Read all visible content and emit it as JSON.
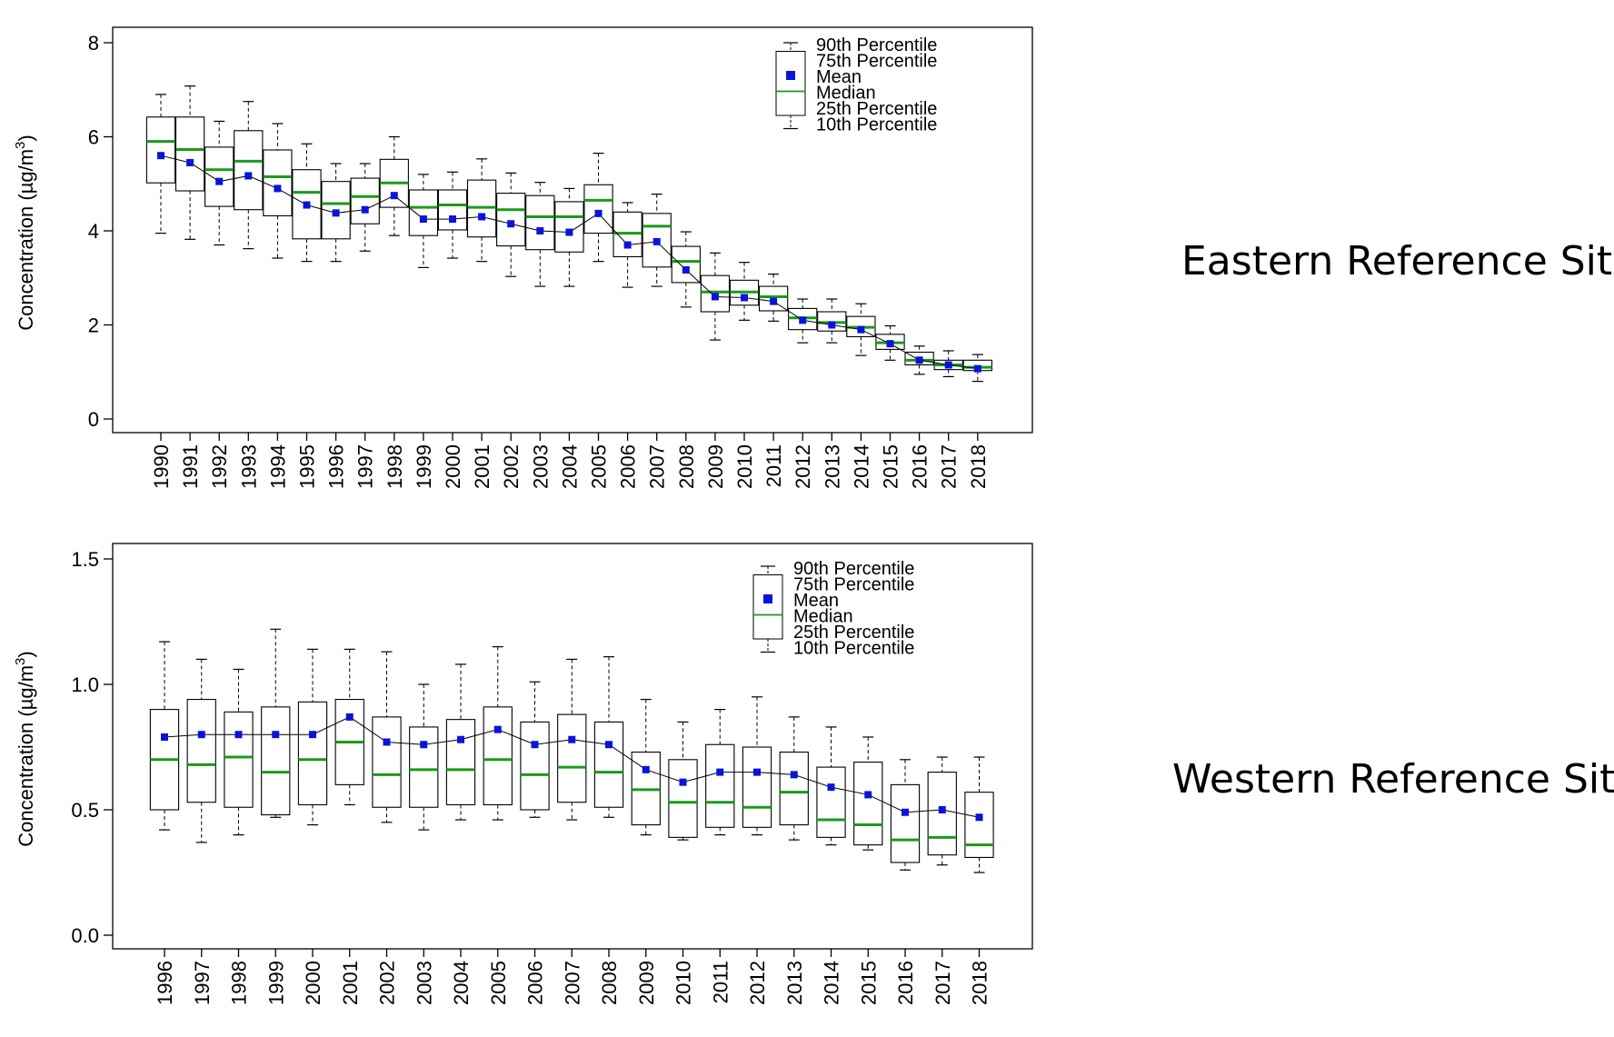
{
  "chart_data": [
    {
      "type": "boxplot",
      "title": "Eastern Reference Sites",
      "xlabel": "",
      "ylabel": "Concentration (µg/m³)",
      "ylabel_parts": {
        "prefix": "Concentration (",
        "mu": "µ",
        "unit": "g/m",
        "sup": "3",
        "suffix": ")"
      },
      "ylim": [
        0,
        8
      ],
      "yticks": [
        0,
        2,
        4,
        6,
        8
      ],
      "ytick_labels": [
        "0",
        "2",
        "4",
        "6",
        "8"
      ],
      "categories": [
        "1990",
        "1991",
        "1992",
        "1993",
        "1994",
        "1995",
        "1996",
        "1997",
        "1998",
        "1999",
        "2000",
        "2001",
        "2002",
        "2003",
        "2004",
        "2005",
        "2006",
        "2007",
        "2008",
        "2009",
        "2010",
        "2011",
        "2012",
        "2013",
        "2014",
        "2015",
        "2016",
        "2017",
        "2018"
      ],
      "p10": [
        3.95,
        3.82,
        3.7,
        3.62,
        3.42,
        3.35,
        3.35,
        3.57,
        3.9,
        3.22,
        3.42,
        3.35,
        3.03,
        2.82,
        2.82,
        3.35,
        2.8,
        2.82,
        2.38,
        1.68,
        2.1,
        2.08,
        1.62,
        1.62,
        1.35,
        1.25,
        0.95,
        0.9,
        0.8
      ],
      "p25": [
        5.02,
        4.85,
        4.52,
        4.45,
        4.32,
        3.83,
        3.83,
        4.15,
        4.5,
        3.9,
        4.02,
        3.87,
        3.68,
        3.6,
        3.55,
        3.95,
        3.45,
        3.23,
        2.9,
        2.28,
        2.42,
        2.3,
        1.9,
        1.87,
        1.75,
        1.48,
        1.15,
        1.05,
        1.03
      ],
      "median": [
        5.9,
        5.73,
        5.3,
        5.48,
        5.15,
        4.82,
        4.58,
        4.73,
        5.02,
        4.5,
        4.55,
        4.5,
        4.45,
        4.3,
        4.3,
        4.65,
        3.95,
        4.1,
        3.35,
        2.7,
        2.7,
        2.6,
        2.15,
        2.05,
        1.95,
        1.62,
        1.25,
        1.15,
        1.1
      ],
      "p75": [
        6.42,
        6.42,
        5.78,
        6.13,
        5.72,
        5.3,
        5.05,
        5.12,
        5.52,
        4.87,
        4.87,
        5.08,
        4.8,
        4.75,
        4.62,
        4.98,
        4.4,
        4.37,
        3.67,
        3.05,
        2.95,
        2.82,
        2.35,
        2.28,
        2.18,
        1.8,
        1.42,
        1.25,
        1.25
      ],
      "p90": [
        6.9,
        7.08,
        6.33,
        6.75,
        6.28,
        5.85,
        5.43,
        5.43,
        6.0,
        5.2,
        5.25,
        5.53,
        5.23,
        5.03,
        4.9,
        5.65,
        4.6,
        4.78,
        3.98,
        3.53,
        3.33,
        3.08,
        2.55,
        2.55,
        2.45,
        1.98,
        1.55,
        1.45,
        1.37
      ],
      "mean": [
        5.6,
        5.45,
        5.05,
        5.17,
        4.9,
        4.55,
        4.38,
        4.45,
        4.75,
        4.25,
        4.25,
        4.3,
        4.15,
        4.0,
        3.97,
        4.37,
        3.7,
        3.77,
        3.17,
        2.6,
        2.58,
        2.5,
        2.1,
        2.0,
        1.9,
        1.6,
        1.25,
        1.15,
        1.07
      ],
      "legend": {
        "position": "top-right",
        "p90": "90th Percentile",
        "p75": "75th Percentile",
        "mean": "Mean",
        "median": "Median",
        "p25": "25th Percentile",
        "p10": "10th Percentile"
      }
    },
    {
      "type": "boxplot",
      "title": "Western Reference Sites",
      "xlabel": "",
      "ylabel": "Concentration (µg/m³)",
      "ylabel_parts": {
        "prefix": "Concentration (",
        "mu": "µ",
        "unit": "g/m",
        "sup": "3",
        "suffix": ")"
      },
      "ylim": [
        0,
        1.5
      ],
      "yticks": [
        0,
        0.5,
        1.0,
        1.5
      ],
      "ytick_labels": [
        "0.0",
        "0.5",
        "1.0",
        "1.5"
      ],
      "categories": [
        "1996",
        "1997",
        "1998",
        "1999",
        "2000",
        "2001",
        "2002",
        "2003",
        "2004",
        "2005",
        "2006",
        "2007",
        "2008",
        "2009",
        "2010",
        "2011",
        "2012",
        "2013",
        "2014",
        "2015",
        "2016",
        "2017",
        "2018"
      ],
      "p10": [
        0.42,
        0.37,
        0.4,
        0.47,
        0.44,
        0.52,
        0.45,
        0.42,
        0.46,
        0.46,
        0.47,
        0.46,
        0.47,
        0.4,
        0.38,
        0.4,
        0.4,
        0.38,
        0.36,
        0.34,
        0.26,
        0.28,
        0.25
      ],
      "p25": [
        0.5,
        0.53,
        0.51,
        0.48,
        0.52,
        0.6,
        0.51,
        0.51,
        0.52,
        0.52,
        0.5,
        0.53,
        0.51,
        0.44,
        0.39,
        0.43,
        0.43,
        0.44,
        0.39,
        0.36,
        0.29,
        0.32,
        0.31
      ],
      "median": [
        0.7,
        0.68,
        0.71,
        0.65,
        0.7,
        0.77,
        0.64,
        0.66,
        0.66,
        0.7,
        0.64,
        0.67,
        0.65,
        0.58,
        0.53,
        0.53,
        0.51,
        0.57,
        0.46,
        0.44,
        0.38,
        0.39,
        0.36
      ],
      "p75": [
        0.9,
        0.94,
        0.89,
        0.91,
        0.93,
        0.94,
        0.87,
        0.83,
        0.86,
        0.91,
        0.85,
        0.88,
        0.85,
        0.73,
        0.7,
        0.76,
        0.75,
        0.73,
        0.67,
        0.69,
        0.6,
        0.65,
        0.57
      ],
      "p90": [
        1.17,
        1.1,
        1.06,
        1.22,
        1.14,
        1.14,
        1.13,
        1.0,
        1.08,
        1.15,
        1.01,
        1.1,
        1.11,
        0.94,
        0.85,
        0.9,
        0.95,
        0.87,
        0.83,
        0.79,
        0.7,
        0.71,
        0.71
      ],
      "mean": [
        0.79,
        0.8,
        0.8,
        0.8,
        0.8,
        0.87,
        0.77,
        0.76,
        0.78,
        0.82,
        0.76,
        0.78,
        0.76,
        0.66,
        0.61,
        0.65,
        0.65,
        0.64,
        0.59,
        0.56,
        0.49,
        0.5,
        0.47
      ],
      "legend": {
        "position": "top-right",
        "p90": "90th Percentile",
        "p75": "75th Percentile",
        "mean": "Mean",
        "median": "Median",
        "p25": "25th Percentile",
        "p10": "10th Percentile"
      }
    }
  ],
  "colors": {
    "median": "#1a9a1a",
    "mean": "#0a14d8",
    "box": "#000000",
    "line": "#000000"
  }
}
